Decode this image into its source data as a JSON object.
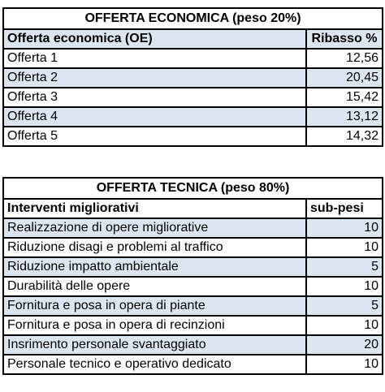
{
  "offerta_economica": {
    "title": "OFFERTA ECONOMICA (peso 20%)",
    "header": {
      "label": "Offerta economica (OE)",
      "value": "Ribasso %"
    },
    "rows": [
      {
        "label": "Offerta 1",
        "value": "12,56"
      },
      {
        "label": "Offerta 2",
        "value": "20,45"
      },
      {
        "label": "Offerta 3",
        "value": "15,42"
      },
      {
        "label": "Offerta 4",
        "value": "13,12"
      },
      {
        "label": "Offerta 5",
        "value": "14,32"
      }
    ]
  },
  "offerta_tecnica": {
    "title": "OFFERTA TECNICA (peso 80%)",
    "header": {
      "label": "Interventi migliorativi",
      "value": "sub-pesi"
    },
    "rows": [
      {
        "label": "Realizzazione di opere migliorative",
        "value": "10"
      },
      {
        "label": "Riduzione disagi e problemi al traffico",
        "value": "10"
      },
      {
        "label": "Riduzione impatto ambientale",
        "value": "5"
      },
      {
        "label": "Durabilità delle opere",
        "value": "10"
      },
      {
        "label": "Fornitura e posa in opera di piante",
        "value": "5"
      },
      {
        "label": "Fornitura e posa in opera di recinzioni",
        "value": "10"
      },
      {
        "label": "Insrimento personale svantaggiato",
        "value": "20"
      },
      {
        "label": "Personale tecnico e operativo dedicato",
        "value": "10"
      }
    ]
  },
  "colors": {
    "shaded_row": "#dce6f1",
    "border": "#000000"
  }
}
